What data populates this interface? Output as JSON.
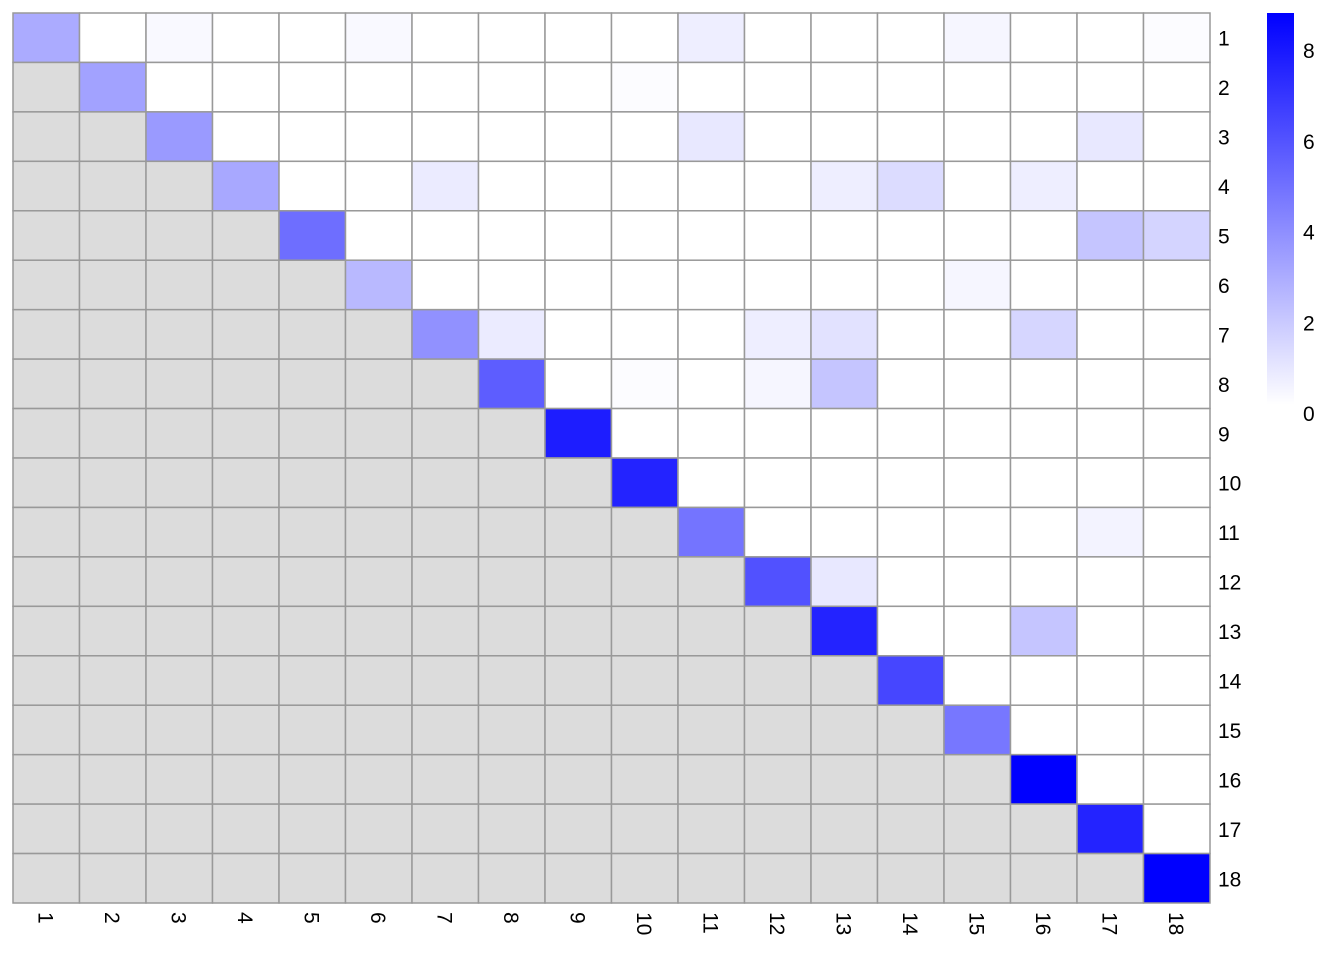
{
  "chart_data": {
    "type": "heatmap",
    "title": "",
    "row_labels": [
      "1",
      "2",
      "3",
      "4",
      "5",
      "6",
      "7",
      "8",
      "9",
      "10",
      "11",
      "12",
      "13",
      "14",
      "15",
      "16",
      "17",
      "18"
    ],
    "col_labels": [
      "1",
      "2",
      "3",
      "4",
      "5",
      "6",
      "7",
      "8",
      "9",
      "10",
      "11",
      "12",
      "13",
      "14",
      "15",
      "16",
      "17",
      "18"
    ],
    "lower_triangle": "masked (grey)",
    "color_scale": {
      "low": "#FFFFFF",
      "high": "#0000FF",
      "masked": "#DCDCDC",
      "grid": "#999999",
      "min": 0,
      "max": 8.8
    },
    "legend": {
      "ticks": [
        "0",
        "2",
        "4",
        "6",
        "8"
      ],
      "tick_values": [
        0,
        2,
        4,
        6,
        8
      ],
      "placement": "right"
    },
    "values": [
      [
        2.9,
        0,
        0.2,
        0,
        0,
        0.2,
        0,
        0,
        0,
        0,
        0.6,
        0,
        0,
        0,
        0.3,
        0,
        0,
        0.1
      ],
      [
        null,
        3.2,
        0,
        0,
        0,
        0,
        0,
        0,
        0,
        0.1,
        0,
        0,
        0,
        0,
        0,
        0,
        0,
        0
      ],
      [
        null,
        null,
        3.5,
        0,
        0,
        0,
        0,
        0,
        0,
        0,
        0.8,
        0,
        0,
        0,
        0,
        0,
        0.8,
        0
      ],
      [
        null,
        null,
        null,
        3.0,
        0,
        0,
        0.7,
        0,
        0,
        0,
        0,
        0,
        0.6,
        1.2,
        0,
        0.6,
        0,
        0
      ],
      [
        null,
        null,
        null,
        null,
        5.0,
        0,
        0,
        0,
        0,
        0,
        0,
        0,
        0,
        0,
        0,
        0,
        2.0,
        1.5
      ],
      [
        null,
        null,
        null,
        null,
        null,
        2.4,
        0,
        0,
        0,
        0,
        0,
        0,
        0,
        0,
        0.3,
        0,
        0,
        0
      ],
      [
        null,
        null,
        null,
        null,
        null,
        null,
        3.8,
        0.7,
        0,
        0,
        0,
        0.6,
        1.0,
        0,
        0,
        1.4,
        0,
        0
      ],
      [
        null,
        null,
        null,
        null,
        null,
        null,
        null,
        5.6,
        0,
        0.1,
        0,
        0.3,
        2.0,
        0,
        0,
        0,
        0,
        0
      ],
      [
        null,
        null,
        null,
        null,
        null,
        null,
        null,
        null,
        7.8,
        0,
        0,
        0,
        0,
        0,
        0,
        0,
        0,
        0
      ],
      [
        null,
        null,
        null,
        null,
        null,
        null,
        null,
        null,
        null,
        7.6,
        0,
        0,
        0,
        0,
        0,
        0,
        0,
        0
      ],
      [
        null,
        null,
        null,
        null,
        null,
        null,
        null,
        null,
        null,
        null,
        4.8,
        0,
        0,
        0,
        0,
        0,
        0.4,
        0
      ],
      [
        null,
        null,
        null,
        null,
        null,
        null,
        null,
        null,
        null,
        null,
        null,
        6.0,
        0.8,
        0,
        0,
        0,
        0,
        0
      ],
      [
        null,
        null,
        null,
        null,
        null,
        null,
        null,
        null,
        null,
        null,
        null,
        null,
        7.6,
        0,
        0,
        2.0,
        0,
        0
      ],
      [
        null,
        null,
        null,
        null,
        null,
        null,
        null,
        null,
        null,
        null,
        null,
        null,
        null,
        6.4,
        0,
        0,
        0,
        0
      ],
      [
        null,
        null,
        null,
        null,
        null,
        null,
        null,
        null,
        null,
        null,
        null,
        null,
        null,
        null,
        4.7,
        0,
        0,
        0
      ],
      [
        null,
        null,
        null,
        null,
        null,
        null,
        null,
        null,
        null,
        null,
        null,
        null,
        null,
        null,
        null,
        8.8,
        0,
        0
      ],
      [
        null,
        null,
        null,
        null,
        null,
        null,
        null,
        null,
        null,
        null,
        null,
        null,
        null,
        null,
        null,
        null,
        7.6,
        0
      ],
      [
        null,
        null,
        null,
        null,
        null,
        null,
        null,
        null,
        null,
        null,
        null,
        null,
        null,
        null,
        null,
        null,
        null,
        8.8
      ]
    ]
  }
}
